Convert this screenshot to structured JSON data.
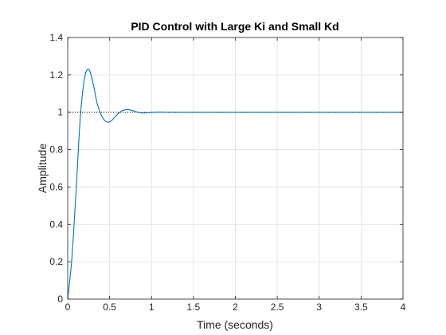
{
  "chart_data": {
    "type": "line",
    "title": "PID Control with Large Ki and Small Kd",
    "xlabel": "Time (seconds)",
    "ylabel": "Amplitude",
    "xlim": [
      0,
      4
    ],
    "ylim": [
      0,
      1.4
    ],
    "x_ticks": [
      "0",
      "0.5",
      "1",
      "1.5",
      "2",
      "2.5",
      "3",
      "3.5",
      "4"
    ],
    "y_ticks": [
      "0",
      "0.2",
      "0.4",
      "0.6",
      "0.8",
      "1",
      "1.2",
      "1.4"
    ],
    "grid": true,
    "legend": "none",
    "series": [
      {
        "x": [
          0,
          0.05,
          0.1,
          0.15,
          0.2,
          0.25,
          0.3,
          0.35,
          0.4,
          0.45,
          0.5,
          0.55,
          0.6,
          0.65,
          0.7,
          0.75,
          0.8,
          0.85,
          0.9,
          0.95,
          1.0,
          1.1,
          1.2,
          1.4,
          1.6,
          2.0,
          2.5,
          3.0,
          3.5,
          4.0
        ],
        "y": [
          0,
          0.22,
          0.58,
          0.97,
          1.18,
          1.23,
          1.16,
          1.05,
          0.985,
          0.952,
          0.948,
          0.968,
          0.992,
          1.008,
          1.014,
          1.012,
          1.005,
          0.999,
          0.996,
          0.997,
          0.999,
          1.001,
          1.0005,
          1.0,
          1.0,
          1.0,
          1.0,
          1.0,
          1.0,
          1.0
        ],
        "color": "#0072BD"
      }
    ],
    "reference_line": {
      "y": 1,
      "style": "dotted",
      "color": "#000000"
    }
  }
}
